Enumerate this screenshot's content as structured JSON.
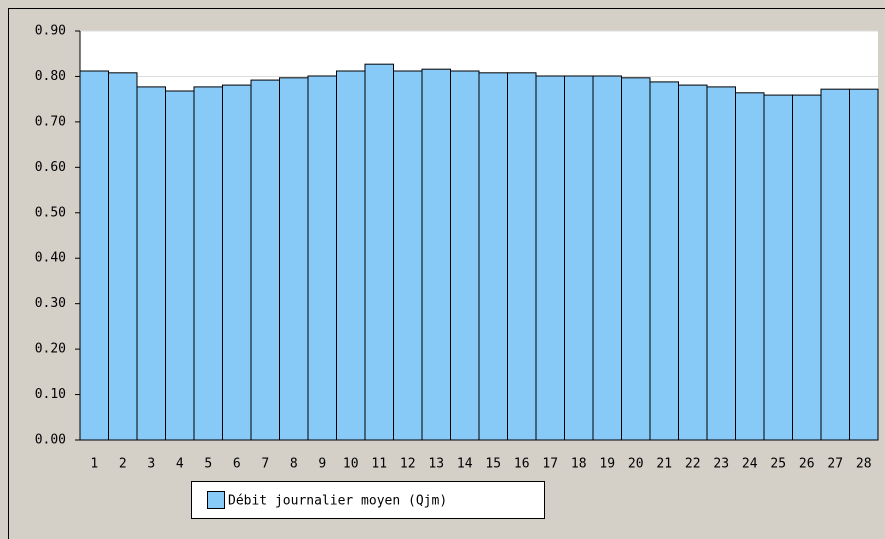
{
  "chart_data": {
    "type": "bar",
    "categories": [
      "1",
      "2",
      "3",
      "4",
      "5",
      "6",
      "7",
      "8",
      "9",
      "10",
      "11",
      "12",
      "13",
      "14",
      "15",
      "16",
      "17",
      "18",
      "19",
      "20",
      "21",
      "22",
      "23",
      "24",
      "25",
      "26",
      "27",
      "28"
    ],
    "series": [
      {
        "name": "Débit journalier moyen (Qjm)",
        "color": "#87c9f7",
        "values": [
          0.812,
          0.808,
          0.777,
          0.768,
          0.777,
          0.781,
          0.792,
          0.797,
          0.801,
          0.812,
          0.827,
          0.812,
          0.816,
          0.812,
          0.808,
          0.808,
          0.801,
          0.801,
          0.801,
          0.797,
          0.788,
          0.781,
          0.777,
          0.764,
          0.759,
          0.759,
          0.772,
          0.772
        ]
      }
    ],
    "ylim": [
      0,
      0.9
    ],
    "yticks": [
      {
        "value": 0,
        "label": "0.00"
      },
      {
        "value": 0.1,
        "label": "0.10"
      },
      {
        "value": 0.2,
        "label": "0.20"
      },
      {
        "value": 0.3,
        "label": "0.30"
      },
      {
        "value": 0.4,
        "label": "0.40"
      },
      {
        "value": 0.5,
        "label": "0.50"
      },
      {
        "value": 0.6,
        "label": "0.60"
      },
      {
        "value": 0.7,
        "label": "0.70"
      },
      {
        "value": 0.8,
        "label": "0.80"
      },
      {
        "value": 0.9,
        "label": "0.90"
      }
    ],
    "grid": true,
    "legend": "bottom"
  }
}
